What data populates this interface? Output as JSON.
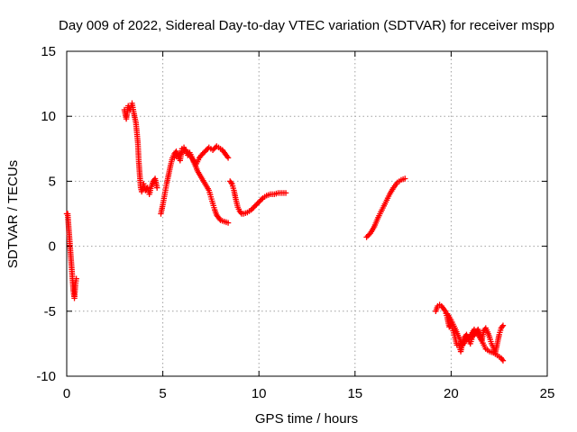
{
  "chart_data": {
    "type": "scatter",
    "title": "Day 009 of 2022, Sidereal Day-to-day VTEC variation (SDTVAR) for receiver mspp",
    "xlabel": "GPS time / hours",
    "ylabel": "SDTVAR / TECUs",
    "xlim": [
      0,
      25
    ],
    "ylim": [
      -10,
      15
    ],
    "xticks": [
      "0",
      "5",
      "10",
      "15",
      "20",
      "25"
    ],
    "yticks": [
      "-10",
      "-5",
      "0",
      "5",
      "10",
      "15"
    ],
    "grid": true,
    "marker": "plus",
    "color": "#ff0000",
    "series": [
      {
        "name": "SDTVAR",
        "segments": [
          [
            [
              0.0,
              2.5
            ],
            [
              0.05,
              2.5
            ],
            [
              0.1,
              1.5
            ],
            [
              0.15,
              0.5
            ],
            [
              0.2,
              -0.5
            ],
            [
              0.25,
              -1.5
            ],
            [
              0.3,
              -2.5
            ],
            [
              0.35,
              -3.5
            ],
            [
              0.4,
              -4.0
            ],
            [
              0.45,
              -3.0
            ],
            [
              0.5,
              -2.5
            ]
          ],
          [
            [
              3.0,
              10.5
            ],
            [
              3.1,
              9.8
            ],
            [
              3.2,
              10.8
            ],
            [
              3.3,
              10.5
            ],
            [
              3.4,
              11.0
            ],
            [
              3.5,
              10.2
            ],
            [
              3.6,
              9.5
            ],
            [
              3.7,
              8.0
            ],
            [
              3.75,
              6.5
            ],
            [
              3.8,
              5.5
            ],
            [
              3.85,
              4.5
            ],
            [
              3.9,
              4.2
            ],
            [
              4.0,
              4.8
            ],
            [
              4.1,
              4.3
            ],
            [
              4.2,
              4.5
            ],
            [
              4.3,
              4.0
            ],
            [
              4.4,
              4.6
            ],
            [
              4.5,
              5.0
            ],
            [
              4.6,
              5.2
            ],
            [
              4.7,
              4.5
            ]
          ],
          [
            [
              4.9,
              2.5
            ],
            [
              5.0,
              3.2
            ],
            [
              5.1,
              4.0
            ],
            [
              5.2,
              4.8
            ],
            [
              5.3,
              5.5
            ],
            [
              5.4,
              6.2
            ],
            [
              5.5,
              6.8
            ],
            [
              5.6,
              7.1
            ],
            [
              5.7,
              7.3
            ],
            [
              5.8,
              7.0
            ],
            [
              5.9,
              6.6
            ],
            [
              6.0,
              7.5
            ],
            [
              6.1,
              7.6
            ],
            [
              6.2,
              7.3
            ],
            [
              6.3,
              7.0
            ],
            [
              6.4,
              7.2
            ],
            [
              6.5,
              6.9
            ],
            [
              6.6,
              6.5
            ],
            [
              6.7,
              6.2
            ],
            [
              6.8,
              6.5
            ],
            [
              6.9,
              6.8
            ],
            [
              7.0,
              7.0
            ],
            [
              7.2,
              7.3
            ],
            [
              7.4,
              7.6
            ],
            [
              7.6,
              7.4
            ],
            [
              7.8,
              7.7
            ],
            [
              8.0,
              7.5
            ],
            [
              8.1,
              7.4
            ],
            [
              8.2,
              7.2
            ],
            [
              8.3,
              7.0
            ],
            [
              8.4,
              6.8
            ]
          ],
          [
            [
              5.6,
              6.8
            ],
            [
              5.8,
              7.0
            ],
            [
              6.0,
              7.2
            ],
            [
              6.2,
              7.4
            ],
            [
              6.4,
              7.0
            ],
            [
              6.6,
              6.6
            ],
            [
              6.8,
              5.8
            ],
            [
              7.0,
              5.3
            ],
            [
              7.2,
              4.8
            ],
            [
              7.4,
              4.3
            ],
            [
              7.5,
              3.8
            ],
            [
              7.6,
              3.3
            ],
            [
              7.7,
              2.8
            ],
            [
              7.8,
              2.4
            ],
            [
              7.9,
              2.2
            ],
            [
              8.0,
              2.0
            ],
            [
              8.2,
              1.9
            ],
            [
              8.4,
              1.8
            ]
          ],
          [
            [
              8.5,
              5.0
            ],
            [
              8.6,
              4.8
            ],
            [
              8.7,
              4.3
            ],
            [
              8.8,
              3.6
            ],
            [
              8.9,
              3.0
            ],
            [
              9.0,
              2.7
            ],
            [
              9.1,
              2.5
            ],
            [
              9.2,
              2.5
            ],
            [
              9.4,
              2.6
            ],
            [
              9.6,
              2.8
            ],
            [
              9.8,
              3.1
            ],
            [
              10.0,
              3.4
            ],
            [
              10.2,
              3.7
            ],
            [
              10.4,
              3.9
            ],
            [
              10.6,
              4.0
            ],
            [
              10.8,
              4.0
            ],
            [
              11.0,
              4.1
            ],
            [
              11.2,
              4.1
            ],
            [
              11.4,
              4.1
            ]
          ],
          [
            [
              15.6,
              0.7
            ],
            [
              15.8,
              1.0
            ],
            [
              16.0,
              1.5
            ],
            [
              16.2,
              2.2
            ],
            [
              16.4,
              2.8
            ],
            [
              16.6,
              3.4
            ],
            [
              16.8,
              4.0
            ],
            [
              17.0,
              4.5
            ],
            [
              17.2,
              4.9
            ],
            [
              17.4,
              5.1
            ],
            [
              17.6,
              5.2
            ]
          ],
          [
            [
              19.2,
              -5.0
            ],
            [
              19.3,
              -4.6
            ],
            [
              19.4,
              -4.5
            ],
            [
              19.5,
              -4.6
            ],
            [
              19.6,
              -4.8
            ],
            [
              19.7,
              -5.0
            ],
            [
              19.8,
              -5.5
            ],
            [
              19.9,
              -6.2
            ],
            [
              20.0,
              -6.0
            ],
            [
              20.1,
              -6.5
            ],
            [
              20.2,
              -7.0
            ],
            [
              20.3,
              -7.6
            ],
            [
              20.4,
              -7.5
            ],
            [
              20.5,
              -8.1
            ],
            [
              20.6,
              -7.4
            ],
            [
              20.7,
              -7.0
            ],
            [
              20.8,
              -6.8
            ],
            [
              20.9,
              -7.2
            ],
            [
              21.0,
              -7.5
            ],
            [
              21.1,
              -7.0
            ],
            [
              21.2,
              -6.8
            ],
            [
              21.3,
              -6.6
            ],
            [
              21.4,
              -6.4
            ],
            [
              21.5,
              -6.8
            ],
            [
              21.6,
              -7.2
            ],
            [
              21.7,
              -6.5
            ],
            [
              21.8,
              -6.3
            ],
            [
              21.9,
              -6.6
            ],
            [
              22.0,
              -7.0
            ],
            [
              22.1,
              -7.5
            ],
            [
              22.2,
              -7.8
            ],
            [
              22.3,
              -8.2
            ],
            [
              22.4,
              -7.5
            ],
            [
              22.5,
              -6.8
            ],
            [
              22.6,
              -6.3
            ],
            [
              22.7,
              -6.1
            ]
          ],
          [
            [
              19.8,
              -5.2
            ],
            [
              20.0,
              -5.7
            ],
            [
              20.2,
              -6.3
            ],
            [
              20.4,
              -7.0
            ],
            [
              20.6,
              -7.6
            ],
            [
              20.8,
              -7.2
            ],
            [
              21.0,
              -6.9
            ],
            [
              21.2,
              -6.4
            ],
            [
              21.4,
              -6.8
            ],
            [
              21.6,
              -7.3
            ],
            [
              21.8,
              -7.9
            ],
            [
              22.0,
              -8.1
            ],
            [
              22.2,
              -8.2
            ],
            [
              22.4,
              -8.4
            ],
            [
              22.6,
              -8.6
            ],
            [
              22.7,
              -8.8
            ]
          ]
        ]
      }
    ]
  }
}
